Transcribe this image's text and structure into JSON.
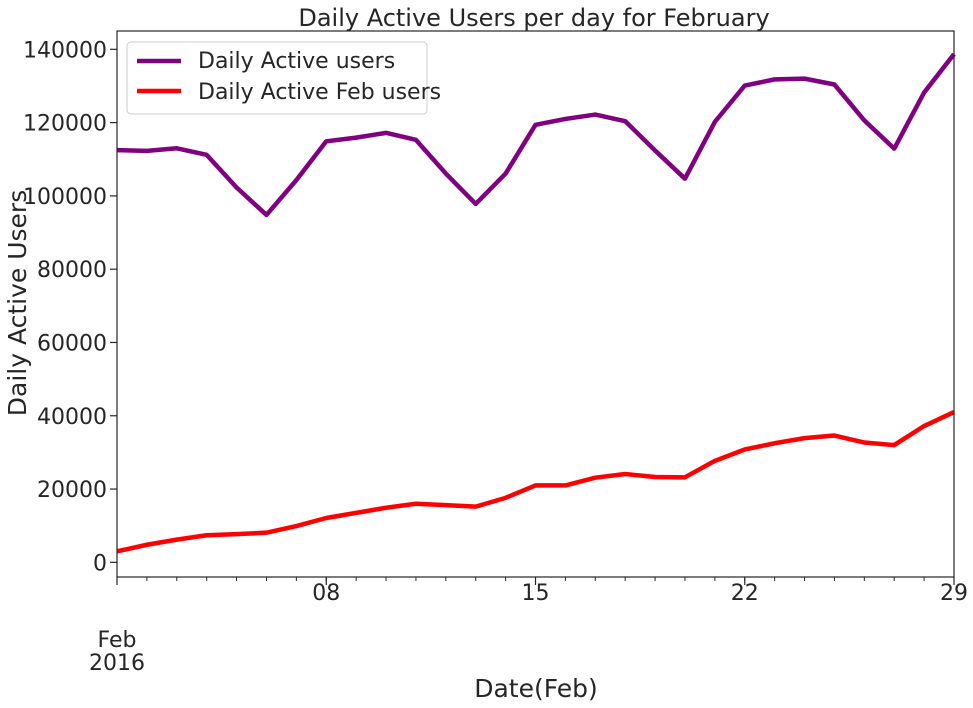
{
  "chart_data": {
    "type": "line",
    "title": "Daily Active Users per day for February",
    "xlabel": "Date(Feb)",
    "ylabel": "Daily Active Users",
    "x": [
      "2016-02-01",
      "2016-02-02",
      "2016-02-03",
      "2016-02-04",
      "2016-02-05",
      "2016-02-06",
      "2016-02-07",
      "2016-02-08",
      "2016-02-09",
      "2016-02-10",
      "2016-02-11",
      "2016-02-12",
      "2016-02-13",
      "2016-02-14",
      "2016-02-15",
      "2016-02-16",
      "2016-02-17",
      "2016-02-18",
      "2016-02-19",
      "2016-02-20",
      "2016-02-21",
      "2016-02-22",
      "2016-02-23",
      "2016-02-24",
      "2016-02-25",
      "2016-02-26",
      "2016-02-27",
      "2016-02-28",
      "2016-02-29"
    ],
    "xlim": [
      "2016-02-01",
      "2016-02-29"
    ],
    "ylim": [
      -4000,
      145000
    ],
    "x_major_ticks": [
      {
        "date": "2016-02-01",
        "label": "Feb",
        "sublabel": "2016"
      },
      {
        "date": "2016-02-08",
        "label": "08"
      },
      {
        "date": "2016-02-15",
        "label": "15"
      },
      {
        "date": "2016-02-22",
        "label": "22"
      },
      {
        "date": "2016-02-29",
        "label": "29"
      }
    ],
    "yticks": [
      0,
      20000,
      40000,
      60000,
      80000,
      100000,
      120000,
      140000
    ],
    "ytick_labels": [
      "0",
      "20000",
      "40000",
      "60000",
      "80000",
      "100000",
      "120000",
      "140000"
    ],
    "grid": false,
    "legend_position": "top-left",
    "series": [
      {
        "name": "Daily Active users",
        "color": "#800080",
        "values": [
          112500,
          112300,
          113000,
          111200,
          102300,
          94800,
          104300,
          114900,
          115900,
          117200,
          115300,
          106100,
          97800,
          106100,
          119400,
          121000,
          122200,
          120400,
          112400,
          104700,
          120200,
          130100,
          131800,
          132000,
          130400,
          120600,
          112900,
          128200,
          138700
        ]
      },
      {
        "name": "Daily Active Feb users",
        "color": "#ff0000",
        "values": [
          3000,
          4800,
          6200,
          7400,
          7700,
          8100,
          9900,
          12100,
          13500,
          14900,
          16000,
          15600,
          15200,
          17600,
          21000,
          21000,
          23100,
          24100,
          23300,
          23200,
          27700,
          30800,
          32500,
          33900,
          34600,
          32700,
          32000,
          37200,
          41000
        ]
      }
    ]
  }
}
